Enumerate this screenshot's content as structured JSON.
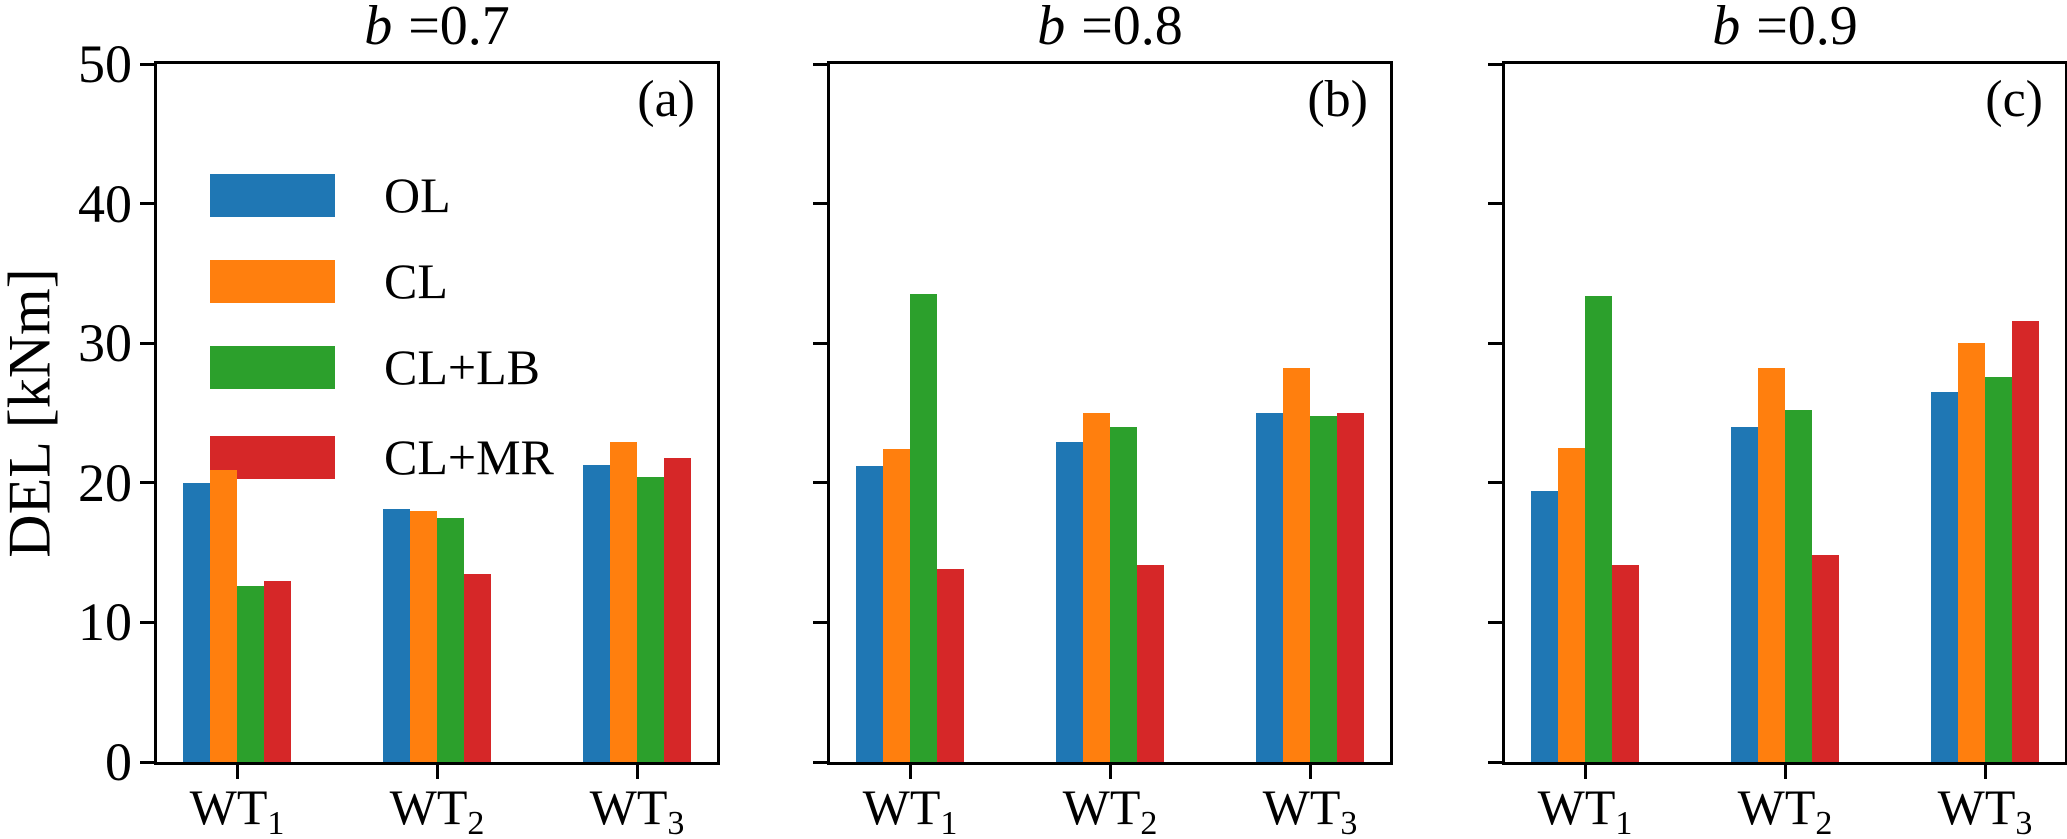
{
  "figure": {
    "background": "#ffffff",
    "text_color": "#000000"
  },
  "chart_data": {
    "type": "bar",
    "ylabel": "DEL [kNm]",
    "ylim": [
      0,
      50
    ],
    "yticks": [
      0,
      10,
      20,
      30,
      40,
      50
    ],
    "grid": "off",
    "legend_position": "upper-left of panel (a)",
    "categories": [
      {
        "label": "WT",
        "sub": "1"
      },
      {
        "label": "WT",
        "sub": "2"
      },
      {
        "label": "WT",
        "sub": "3"
      }
    ],
    "subplots": [
      {
        "title_var": "b",
        "title_eq": "=0.7",
        "panel_label": "(a)",
        "series": [
          {
            "name": "OL",
            "color": "#1f77b4",
            "values": [
              20.0,
              18.1,
              21.3
            ]
          },
          {
            "name": "CL",
            "color": "#ff7f0e",
            "values": [
              20.9,
              18.0,
              22.9
            ]
          },
          {
            "name": "CL+LB",
            "color": "#2ca02c",
            "values": [
              12.6,
              17.5,
              20.4
            ]
          },
          {
            "name": "CL+MR",
            "color": "#d62728",
            "values": [
              13.0,
              13.5,
              21.8
            ]
          }
        ]
      },
      {
        "title_var": "b",
        "title_eq": "=0.8",
        "panel_label": "(b)",
        "series": [
          {
            "name": "OL",
            "color": "#1f77b4",
            "values": [
              21.2,
              22.9,
              25.0
            ]
          },
          {
            "name": "CL",
            "color": "#ff7f0e",
            "values": [
              22.4,
              25.0,
              28.2
            ]
          },
          {
            "name": "CL+LB",
            "color": "#2ca02c",
            "values": [
              33.5,
              24.0,
              24.8
            ]
          },
          {
            "name": "CL+MR",
            "color": "#d62728",
            "values": [
              13.8,
              14.1,
              25.0
            ]
          }
        ]
      },
      {
        "title_var": "b",
        "title_eq": "=0.9",
        "panel_label": "(c)",
        "series": [
          {
            "name": "OL",
            "color": "#1f77b4",
            "values": [
              19.4,
              24.0,
              26.5
            ]
          },
          {
            "name": "CL",
            "color": "#ff7f0e",
            "values": [
              22.5,
              28.2,
              30.0
            ]
          },
          {
            "name": "CL+LB",
            "color": "#2ca02c",
            "values": [
              33.4,
              25.2,
              27.6
            ]
          },
          {
            "name": "CL+MR",
            "color": "#d62728",
            "values": [
              14.1,
              14.8,
              31.6
            ]
          }
        ]
      }
    ]
  }
}
